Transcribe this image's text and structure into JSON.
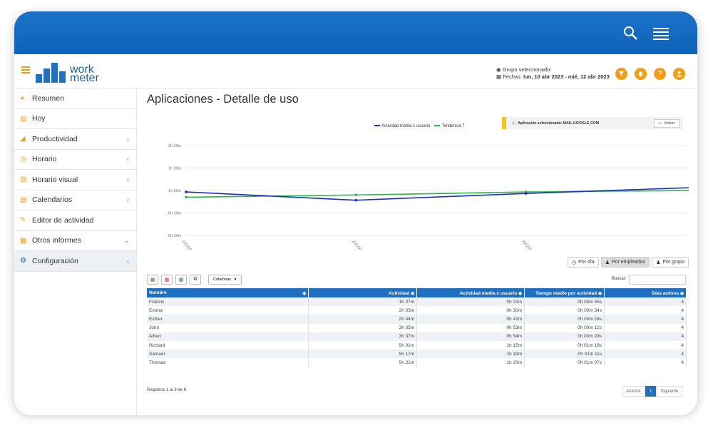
{
  "topbar": {
    "search_icon": "search-icon",
    "menu_icon": "menu-icon",
    "color": "#1a73c9"
  },
  "header": {
    "logo_line1": "work",
    "logo_line2": "meter",
    "group_label": "Grupo seleccionado:",
    "dates_label": "Fechas:",
    "dates_value": "lun, 10 abr 2023 - mié, 12 abr 2023",
    "action_icons": [
      "filter-icon",
      "bell-icon",
      "help-icon",
      "user-icon"
    ],
    "accent": "#f59d0e"
  },
  "sidebar": {
    "items": [
      {
        "label": "Resumen",
        "icon": "dashboard-icon",
        "chevron": false
      },
      {
        "label": "Hoy",
        "icon": "calendar-icon",
        "chevron": false
      },
      {
        "label": "Productividad",
        "icon": "area-chart-icon",
        "chevron": true
      },
      {
        "label": "Horario",
        "icon": "clock-icon",
        "chevron": true
      },
      {
        "label": "Horario visual",
        "icon": "bar-chart-icon",
        "chevron": true
      },
      {
        "label": "Calendarios",
        "icon": "calendar-icon",
        "chevron": true
      },
      {
        "label": "Editor de actividad",
        "icon": "edit-icon",
        "chevron": false
      },
      {
        "label": "Otros informes",
        "icon": "table-icon",
        "chevron": "down"
      },
      {
        "label": "Configuración",
        "icon": "gear-icon",
        "chevron": true
      }
    ]
  },
  "page": {
    "title": "Aplicaciones - Detalle de uso"
  },
  "app_selected": {
    "text": "Aplicación seleccionada: MAIL.GOOGLE.COM",
    "back_label": "Volver"
  },
  "chart_data": {
    "type": "line",
    "x": [
      "1/3/2023",
      "2/3/2023",
      "3/3/2023",
      "4/3/2023"
    ],
    "y_ticks": [
      "0h 00m",
      "0h 30m",
      "1h 00m",
      "1h 30m",
      "2h 00m"
    ],
    "ylim": [
      0,
      120
    ],
    "series": [
      {
        "name": "Actividad media x usuario",
        "color": "#1c2fc4",
        "values": [
          58,
          47,
          56,
          64
        ]
      },
      {
        "name": "Tendencia",
        "color": "#2fb844",
        "values": [
          51,
          54,
          58,
          60
        ]
      }
    ],
    "grid": true,
    "legend": "top-center"
  },
  "views": [
    {
      "label": "Por día",
      "icon": "clock-icon",
      "active": false
    },
    {
      "label": "Por empleados",
      "icon": "user-icon",
      "active": true
    },
    {
      "label": "Por grupo",
      "icon": "group-icon",
      "active": false
    }
  ],
  "tools": {
    "columns_label": "Columnas",
    "search_label": "Buscar:"
  },
  "table": {
    "headers": [
      "Nombre",
      "Actividad",
      "Actividad media x usuario",
      "Tiempo medio por actividad",
      "Días activos"
    ],
    "rows": [
      [
        "Francis",
        "1h 27m",
        "0h 21m",
        "0h 00m 45s",
        "4"
      ],
      [
        "Emma",
        "2h 03m",
        "0h 30m",
        "0h 00m 54s",
        "4"
      ],
      [
        "Esther",
        "2h 44m",
        "0h 41m",
        "0h 00m 28s",
        "4"
      ],
      [
        "John",
        "3h 35m",
        "0h 53m",
        "0h 00m 12s",
        "4"
      ],
      [
        "Albert",
        "3h 37m",
        "0h 54m",
        "0h 00m 29s",
        "4"
      ],
      [
        "Richard",
        "5h 01m",
        "1h 15m",
        "0h 01m 19s",
        "4"
      ],
      [
        "Samuel",
        "5h 17m",
        "1h 19m",
        "0h 01m 11s",
        "4"
      ],
      [
        "Thomas",
        "5h 21m",
        "1h 20m",
        "0h 01m 07s",
        "4"
      ]
    ]
  },
  "footer": {
    "records": "Registros 1 al 8 de 8",
    "prev": "Anterior",
    "page": "1",
    "next": "Siguiente"
  }
}
